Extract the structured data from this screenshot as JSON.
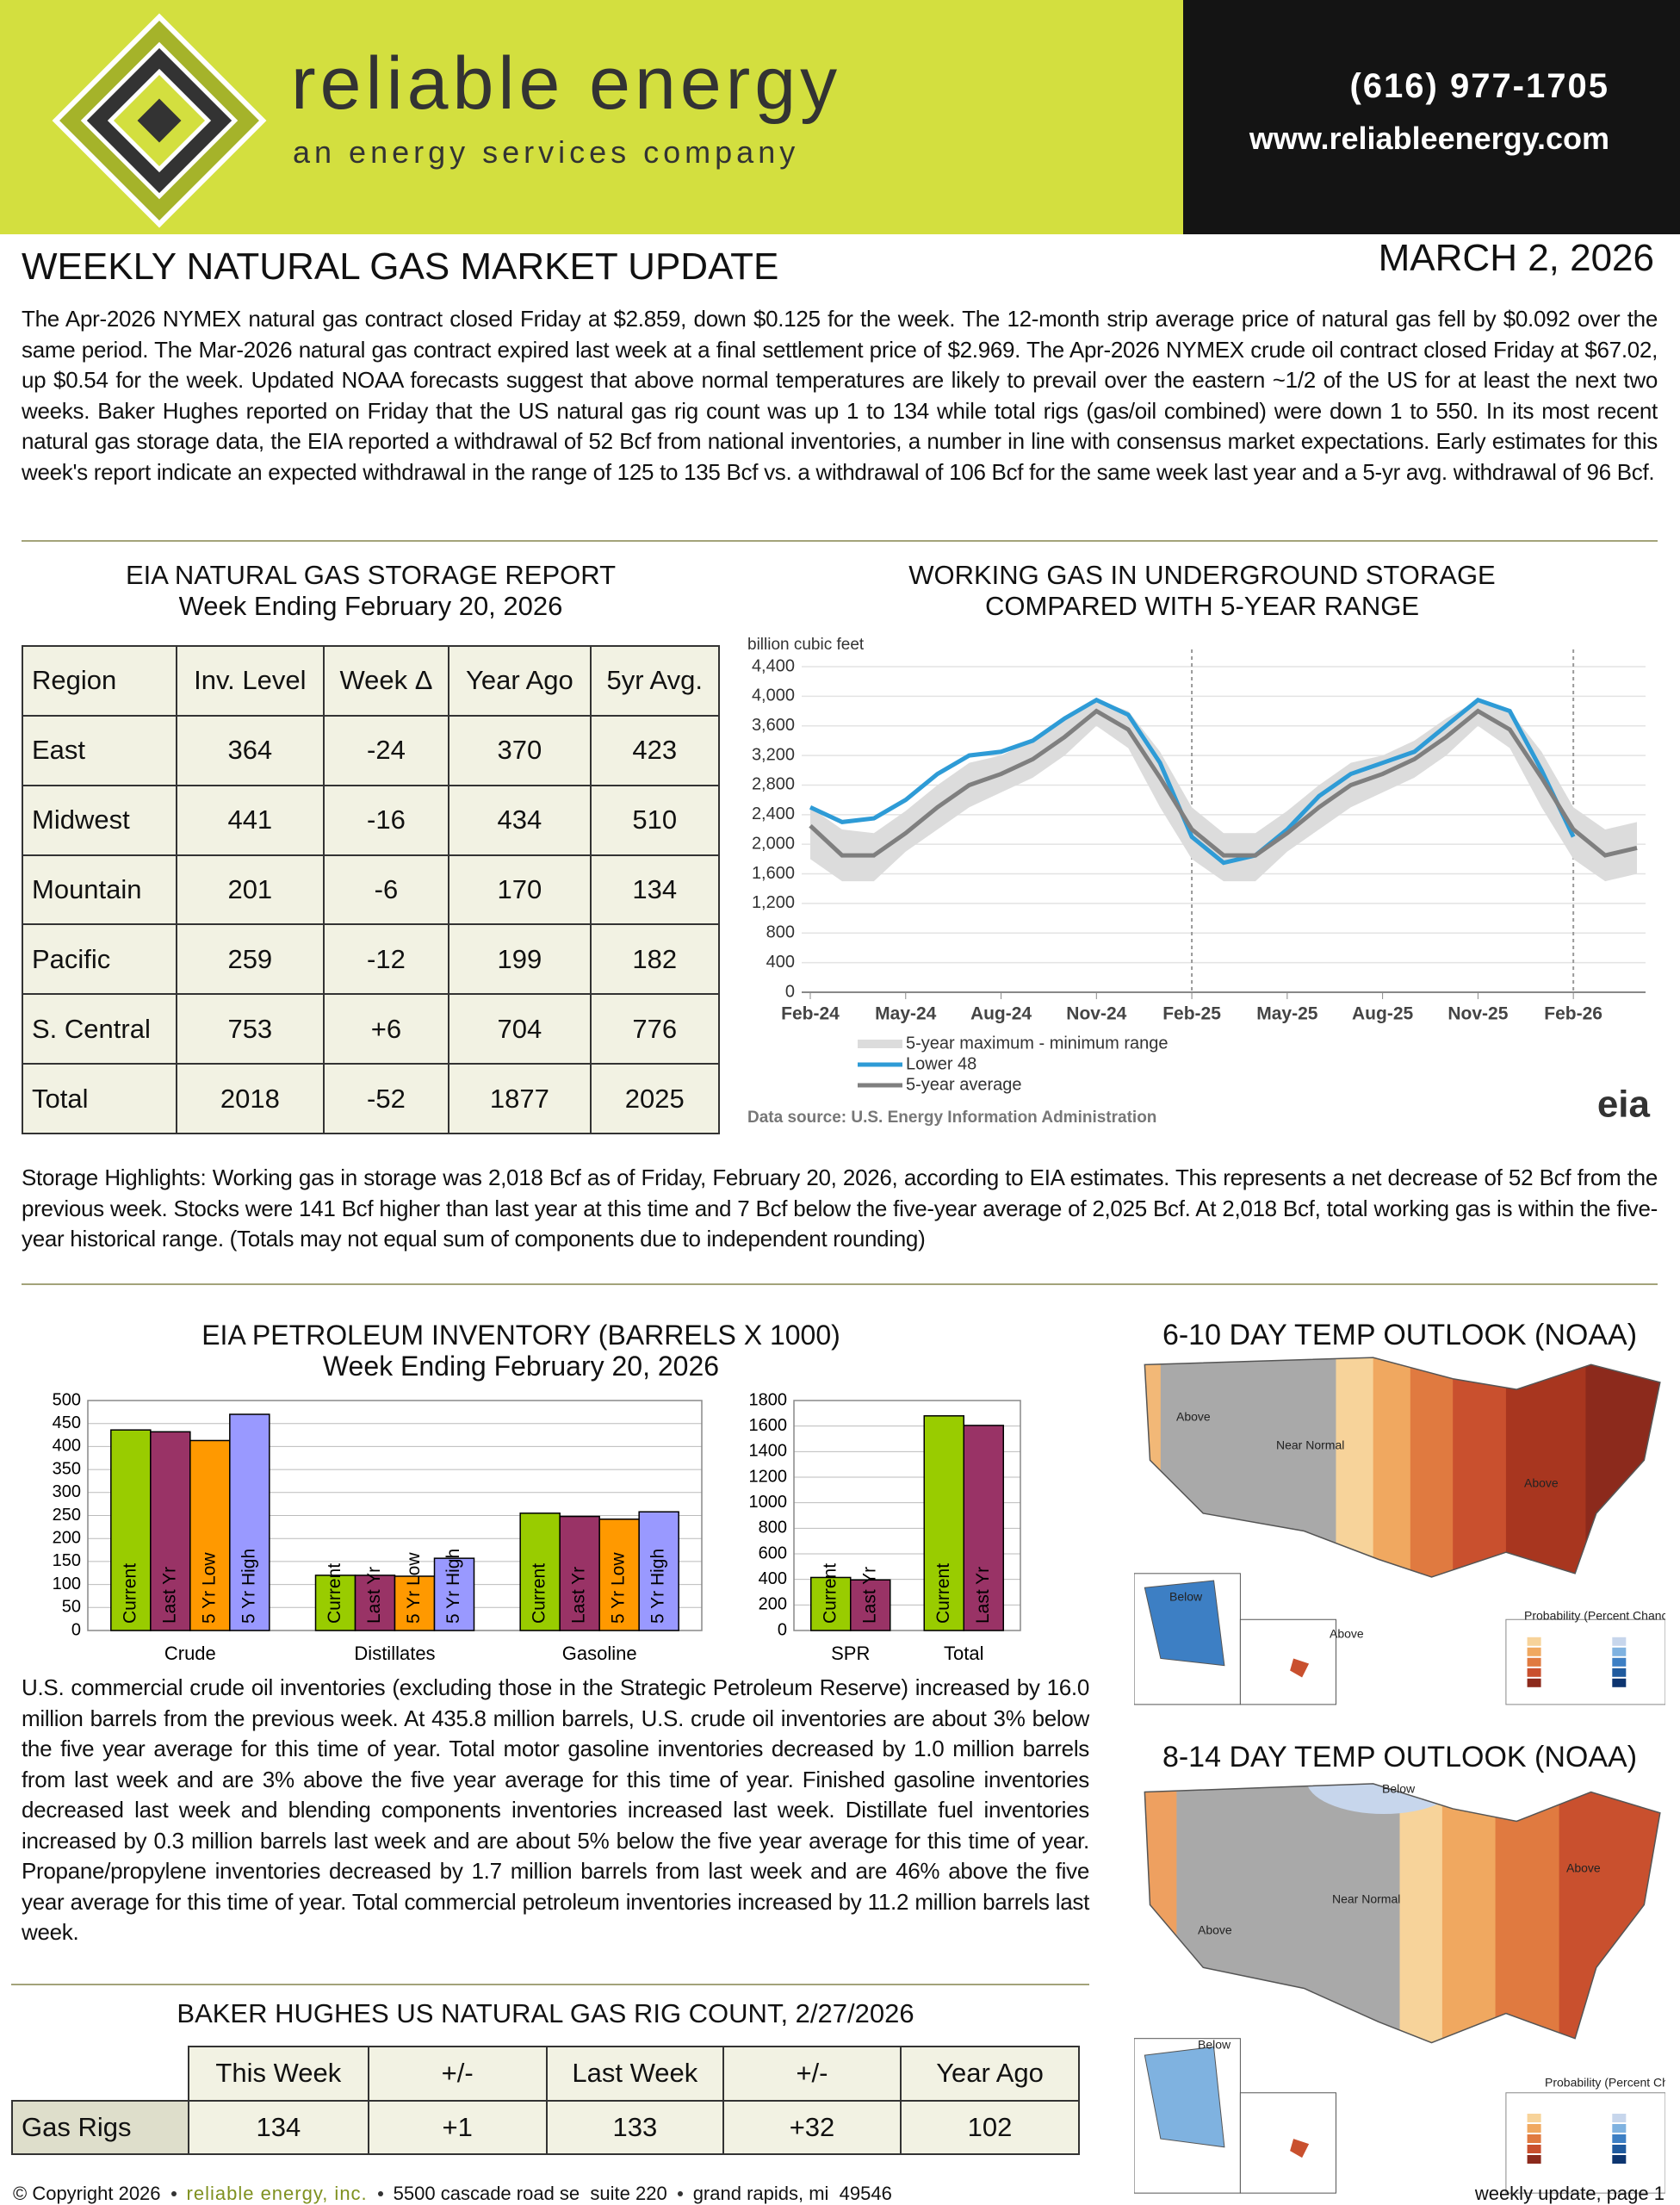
{
  "header": {
    "company": "reliable energy",
    "tagline": "an energy services company",
    "phone": "(616) 977-1705",
    "website": "www.reliableenergy.com"
  },
  "title": "WEEKLY NATURAL GAS MARKET UPDATE",
  "date": "MARCH 2, 2026",
  "summary": "The Apr-2026 NYMEX natural gas contract closed Friday at $2.859, down $0.125 for the week. The 12-month strip average price of natural gas fell by $0.092 over the same period. The Mar-2026 natural gas contract expired last week at a final settlement price of $2.969. The Apr-2026 NYMEX crude oil contract closed Friday at $67.02, up $0.54 for the week. Updated NOAA forecasts suggest that above normal temperatures are likely to prevail over the eastern ~1/2 of the US for at least the next two weeks. Baker Hughes reported on Friday that the US natural gas rig count was up 1 to 134 while total rigs (gas/oil combined) were down 1 to 550. In its most recent natural gas storage data, the EIA reported a withdrawal of 52 Bcf from national inventories, a number in line with consensus market expectations. Early estimates for this week's report indicate an expected withdrawal in the range of 125 to 135 Bcf vs. a withdrawal of 106 Bcf for the same week last year and a 5-yr avg. withdrawal of 96 Bcf.",
  "storage_table": {
    "title": "EIA NATURAL GAS STORAGE REPORT",
    "subtitle": "Week Ending February 20, 2026",
    "columns": [
      "Region",
      "Inv. Level",
      "Week Δ",
      "Year Ago",
      "5yr Avg."
    ],
    "rows": [
      [
        "East",
        "364",
        "-24",
        "370",
        "423"
      ],
      [
        "Midwest",
        "441",
        "-16",
        "434",
        "510"
      ],
      [
        "Mountain",
        "201",
        "-6",
        "170",
        "134"
      ],
      [
        "Pacific",
        "259",
        "-12",
        "199",
        "182"
      ],
      [
        "S. Central",
        "753",
        "+6",
        "704",
        "776"
      ],
      [
        "Total",
        "2018",
        "-52",
        "1877",
        "2025"
      ]
    ]
  },
  "storage_highlights": "Storage Highlights: Working gas in storage was 2,018 Bcf as of Friday, February 20, 2026, according to EIA estimates. This represents a net decrease of 52 Bcf from the previous week. Stocks were 141 Bcf higher than last year at this time and 7 Bcf below the five-year average of 2,025 Bcf. At 2,018 Bcf, total working gas is within the five-year historical range. (Totals may not equal sum of components due to independent rounding)",
  "chart_data": [
    {
      "type": "line",
      "title": "WORKING GAS IN UNDERGROUND STORAGE",
      "subtitle": "COMPARED WITH 5-YEAR RANGE",
      "y_label": "billion cubic feet",
      "source": "Data source:  U.S. Energy Information Administration",
      "logo": "eia",
      "categories": [
        "Feb-24",
        null,
        null,
        "May-24",
        null,
        null,
        "Aug-24",
        null,
        null,
        "Nov-24",
        null,
        null,
        "Feb-25",
        null,
        null,
        "May-25",
        null,
        null,
        "Aug-25",
        null,
        null,
        "Nov-25",
        null,
        null,
        "Feb-26",
        null,
        null
      ],
      "series": [
        {
          "name": "5-year maximum - minimum range",
          "color": "#dcdcdc",
          "values": [
            2500,
            2200,
            2150,
            2450,
            2800,
            3100,
            3200,
            3400,
            3700,
            3950,
            3800,
            3250,
            2500,
            2150,
            2150,
            2450,
            2800,
            3100,
            3200,
            3400,
            3700,
            3950,
            3800,
            3250,
            2500,
            2200,
            2300
          ],
          "low": [
            1800,
            1500,
            1500,
            1900,
            2200,
            2500,
            2700,
            2900,
            3200,
            3600,
            3300,
            2500,
            1800,
            1500,
            1500,
            1900,
            2200,
            2500,
            2700,
            2900,
            3200,
            3600,
            3300,
            2500,
            1800,
            1500,
            1600
          ]
        },
        {
          "name": "Lower 48",
          "color": "#2e9bd6",
          "values": [
            2500,
            2300,
            2350,
            2600,
            2950,
            3200,
            3250,
            3400,
            3700,
            3950,
            3750,
            3100,
            2100,
            1750,
            1850,
            2200,
            2650,
            2950,
            3100,
            3250,
            3600,
            3950,
            3800,
            3000,
            2100,
            null,
            null
          ]
        },
        {
          "name": "5-year average",
          "color": "#7f7f7f",
          "values": [
            2250,
            1850,
            1850,
            2150,
            2500,
            2800,
            2950,
            3150,
            3450,
            3800,
            3550,
            2900,
            2200,
            1850,
            1850,
            2150,
            2500,
            2800,
            2950,
            3150,
            3450,
            3800,
            3550,
            2900,
            2200,
            1850,
            1950
          ]
        }
      ],
      "ylim": [
        0,
        4400
      ],
      "yticks": [
        0,
        400,
        800,
        {
          "value": 1200,
          "label": "1,200"
        },
        {
          "value": 1600,
          "label": "1,600"
        },
        {
          "value": 2000,
          "label": "2,000"
        },
        {
          "value": 2400,
          "label": "2,400"
        },
        {
          "value": 2800,
          "label": "2,800"
        },
        {
          "value": 3200,
          "label": "3,200"
        },
        {
          "value": 3600,
          "label": "3,600"
        },
        {
          "value": 4000,
          "label": "4,000"
        },
        {
          "value": 4400,
          "label": "4,400"
        }
      ],
      "grid": true
    },
    {
      "type": "bar",
      "title": "EIA PETROLEUM INVENTORY (BARRELS X 1000)",
      "subtitle": "Week Ending February 20, 2026",
      "categories": [
        "Crude",
        "Distillates",
        "Gasoline"
      ],
      "series": [
        {
          "name": "Current",
          "color": "#99cc00",
          "values": [
            436,
            120,
            255
          ]
        },
        {
          "name": "Last Yr",
          "color": "#993366",
          "values": [
            432,
            120,
            248
          ]
        },
        {
          "name": "5 Yr Low",
          "color": "#ff9900",
          "values": [
            413,
            118,
            242
          ]
        },
        {
          "name": "5 Yr High",
          "color": "#9999ff",
          "values": [
            470,
            157,
            258
          ]
        }
      ],
      "ylim": [
        0,
        500
      ],
      "yticks": [
        0,
        50,
        100,
        150,
        200,
        250,
        300,
        350,
        400,
        450,
        500
      ],
      "grid": true
    },
    {
      "type": "bar",
      "categories": [
        "SPR",
        "Total"
      ],
      "series": [
        {
          "name": "Current",
          "color": "#99cc00",
          "values": [
            415,
            1680
          ]
        },
        {
          "name": "Last Yr",
          "color": "#993366",
          "values": [
            396,
            1605
          ]
        }
      ],
      "ylim": [
        0,
        1800
      ],
      "yticks": [
        0,
        200,
        400,
        600,
        800,
        1000,
        1200,
        1400,
        1600,
        1800
      ],
      "grid": true
    }
  ],
  "petroleum_summary": "U.S. commercial crude oil inventories (excluding those in the Strategic Petroleum Reserve) increased by 16.0 million barrels from the previous week. At 435.8 million barrels, U.S. crude oil inventories are about 3% below the five year average for this time of year. Total motor gasoline inventories decreased by 1.0 million barrels from last week and are 3% above the five year average for this time of year. Finished gasoline inventories decreased last week and blending components inventories increased last week. Distillate fuel inventories increased by 0.3 million barrels last week and are about 5% below the five year average for this time of year. Propane/propylene inventories decreased by 1.7 million barrels from last week and are 46% above the five year average for this time of year. Total commercial petroleum inventories increased by 11.2 million barrels last week.",
  "rig_table": {
    "title": "BAKER HUGHES US NATURAL GAS RIG COUNT, 2/27/2026",
    "columns": [
      "This Week",
      "+/-",
      "Last Week",
      "+/-",
      "Year Ago"
    ],
    "rows": [
      {
        "label": "Gas Rigs",
        "cells": [
          "134",
          "+1",
          "133",
          "+32",
          "102"
        ]
      }
    ]
  },
  "outlooks": [
    {
      "title": "6-10 DAY TEMP OUTLOOK (NOAA)",
      "labels": [
        "Above",
        "Near Normal",
        "Above",
        "Below",
        "Above",
        "Probability (Percent Chance)"
      ]
    },
    {
      "title": "8-14 DAY TEMP OUTLOOK (NOAA)",
      "labels": [
        "Below",
        "Near Normal",
        "Above",
        "Above",
        "Below",
        "Probability (Percent Chance)"
      ]
    }
  ],
  "footer": {
    "copyright": "© Copyright 2026",
    "company": "reliable energy, inc.",
    "address": "5500 cascade road se  suite 220",
    "city": "grand rapids, mi  49546",
    "page": "weekly update, page 1"
  }
}
